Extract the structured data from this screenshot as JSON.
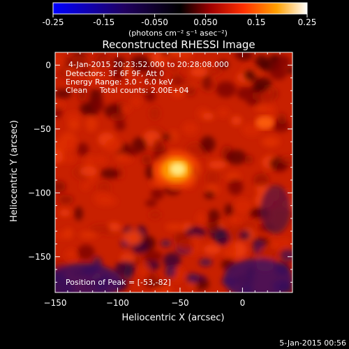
{
  "chart_data": {
    "type": "heatmap",
    "title": "Reconstructed RHESSI Image",
    "xlabel": "Heliocentric X (arcsec)",
    "ylabel": "Heliocentric Y (arcsec)",
    "xlim": [
      -150,
      40
    ],
    "ylim": [
      -178,
      10
    ],
    "x_ticks": [
      -150,
      -100,
      -50,
      0
    ],
    "y_ticks": [
      0,
      -50,
      -100,
      -150
    ],
    "colorbar": {
      "range": [
        -0.25,
        0.25
      ],
      "ticks": [
        "-0.25",
        "-0.15",
        "-0.050",
        "0.050",
        "0.15",
        "0.25"
      ],
      "unit_label": "(photons cm⁻² s⁻¹ asec⁻²)",
      "colormap": [
        "#0000ff",
        "#000000",
        "#a00000",
        "#ff3000",
        "#ffa000",
        "#ffffff"
      ]
    },
    "annotations": {
      "time_range": "4-Jan-2015 20:23:52.000 to 20:28:08.000",
      "detectors": "Detectors: 3F 6F 9F, Att 0",
      "energy_range": "Energy Range: 3.0 - 6.0 keV",
      "algorithm": "Clean     Total counts: 2.00E+04",
      "peak": "Position of Peak = [-53,-82]"
    },
    "peak": {
      "x": -53,
      "y": -82,
      "value": 0.25
    },
    "secondary_source": {
      "x": 18,
      "y": -45,
      "value": 0.13
    },
    "background_level": 0.06
  },
  "footer": {
    "date_stamp": "5-Jan-2015 00:56"
  }
}
